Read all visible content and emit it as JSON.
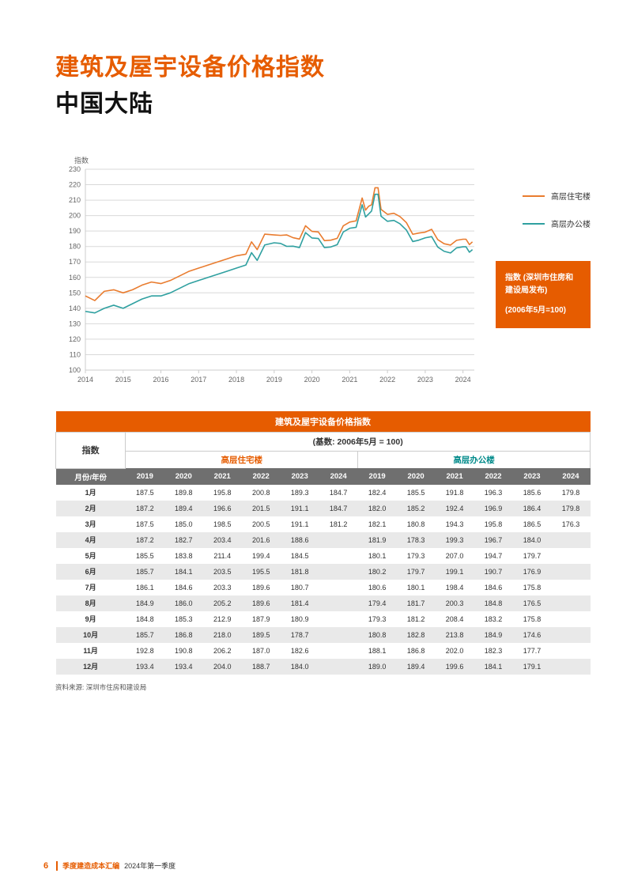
{
  "title_line1": "建筑及屋宇设备价格指数",
  "title_line2": "中国大陆",
  "chart": {
    "y_axis_title": "指数",
    "ylim": [
      100,
      230
    ],
    "ytick_step": 10,
    "yticks": [
      100,
      110,
      120,
      130,
      140,
      150,
      160,
      170,
      180,
      190,
      200,
      210,
      220,
      230
    ],
    "xlim": [
      2014,
      2024.3
    ],
    "xticks": [
      2014,
      2015,
      2016,
      2017,
      2018,
      2019,
      2020,
      2021,
      2022,
      2023,
      2024
    ],
    "grid_color": "#d9d9d9",
    "axis_color": "#cccccc",
    "background_color": "#ffffff",
    "tick_fontsize": 9,
    "tick_color": "#666666",
    "line_width": 1.6,
    "series": [
      {
        "name": "高层住宅楼",
        "color": "#e97c2f",
        "points": [
          [
            2014.0,
            148
          ],
          [
            2014.25,
            145
          ],
          [
            2014.5,
            151
          ],
          [
            2014.75,
            152
          ],
          [
            2015.0,
            150
          ],
          [
            2015.25,
            152
          ],
          [
            2015.5,
            155
          ],
          [
            2015.75,
            157
          ],
          [
            2016.0,
            156
          ],
          [
            2016.25,
            158
          ],
          [
            2016.5,
            161
          ],
          [
            2016.75,
            164
          ],
          [
            2017.0,
            166
          ],
          [
            2017.25,
            168
          ],
          [
            2017.5,
            170
          ],
          [
            2017.75,
            172
          ],
          [
            2018.0,
            174
          ],
          [
            2018.25,
            175
          ],
          [
            2018.4,
            183
          ],
          [
            2018.55,
            178
          ],
          [
            2018.75,
            188
          ],
          [
            2019.0,
            187.5
          ],
          [
            2019.17,
            187.2
          ],
          [
            2019.33,
            187.5
          ],
          [
            2019.5,
            185.7
          ],
          [
            2019.67,
            184.8
          ],
          [
            2019.83,
            193.4
          ],
          [
            2020.0,
            189.8
          ],
          [
            2020.17,
            189.4
          ],
          [
            2020.33,
            183.8
          ],
          [
            2020.5,
            184.1
          ],
          [
            2020.67,
            185.3
          ],
          [
            2020.83,
            193.4
          ],
          [
            2021.0,
            195.8
          ],
          [
            2021.17,
            196.6
          ],
          [
            2021.33,
            211.4
          ],
          [
            2021.42,
            203.5
          ],
          [
            2021.5,
            206
          ],
          [
            2021.58,
            207
          ],
          [
            2021.67,
            218.0
          ],
          [
            2021.75,
            218.0
          ],
          [
            2021.83,
            204.0
          ],
          [
            2022.0,
            200.8
          ],
          [
            2022.17,
            201.5
          ],
          [
            2022.33,
            199.4
          ],
          [
            2022.5,
            195.5
          ],
          [
            2022.67,
            187.9
          ],
          [
            2022.83,
            188.7
          ],
          [
            2023.0,
            189.3
          ],
          [
            2023.17,
            191.1
          ],
          [
            2023.33,
            184.5
          ],
          [
            2023.5,
            181.8
          ],
          [
            2023.67,
            180.9
          ],
          [
            2023.83,
            184.0
          ],
          [
            2024.0,
            184.7
          ],
          [
            2024.08,
            184.7
          ],
          [
            2024.17,
            181.2
          ],
          [
            2024.25,
            183
          ]
        ]
      },
      {
        "name": "高层办公楼",
        "color": "#2fa0a0",
        "points": [
          [
            2014.0,
            138
          ],
          [
            2014.25,
            137
          ],
          [
            2014.5,
            140
          ],
          [
            2014.75,
            142
          ],
          [
            2015.0,
            140
          ],
          [
            2015.25,
            143
          ],
          [
            2015.5,
            146
          ],
          [
            2015.75,
            148
          ],
          [
            2016.0,
            148
          ],
          [
            2016.25,
            150
          ],
          [
            2016.5,
            153
          ],
          [
            2016.75,
            156
          ],
          [
            2017.0,
            158
          ],
          [
            2017.25,
            160
          ],
          [
            2017.5,
            162
          ],
          [
            2017.75,
            164
          ],
          [
            2018.0,
            166
          ],
          [
            2018.25,
            168
          ],
          [
            2018.4,
            176
          ],
          [
            2018.55,
            171
          ],
          [
            2018.75,
            181
          ],
          [
            2019.0,
            182.4
          ],
          [
            2019.17,
            182.0
          ],
          [
            2019.33,
            180.1
          ],
          [
            2019.5,
            180.2
          ],
          [
            2019.67,
            179.3
          ],
          [
            2019.83,
            189.0
          ],
          [
            2020.0,
            185.5
          ],
          [
            2020.17,
            185.2
          ],
          [
            2020.33,
            179.3
          ],
          [
            2020.5,
            179.7
          ],
          [
            2020.67,
            181.2
          ],
          [
            2020.83,
            189.4
          ],
          [
            2021.0,
            191.8
          ],
          [
            2021.17,
            192.4
          ],
          [
            2021.33,
            207.0
          ],
          [
            2021.42,
            199.1
          ],
          [
            2021.5,
            201
          ],
          [
            2021.58,
            203
          ],
          [
            2021.67,
            213.8
          ],
          [
            2021.75,
            213.8
          ],
          [
            2021.83,
            199.6
          ],
          [
            2022.0,
            196.3
          ],
          [
            2022.17,
            196.9
          ],
          [
            2022.33,
            194.7
          ],
          [
            2022.5,
            190.7
          ],
          [
            2022.67,
            183.2
          ],
          [
            2022.83,
            184.1
          ],
          [
            2023.0,
            185.6
          ],
          [
            2023.17,
            186.4
          ],
          [
            2023.33,
            179.7
          ],
          [
            2023.5,
            176.9
          ],
          [
            2023.67,
            175.8
          ],
          [
            2023.83,
            179.1
          ],
          [
            2024.0,
            179.8
          ],
          [
            2024.08,
            179.8
          ],
          [
            2024.17,
            176.3
          ],
          [
            2024.25,
            178
          ]
        ]
      }
    ],
    "legend_items": [
      "高层住宅楼",
      "高层办公楼"
    ],
    "info_box_line1": "指数 (深圳市住房和建设局发布)",
    "info_box_line2": "(2006年5月=100)"
  },
  "table": {
    "title": "建筑及屋宇设备价格指数",
    "index_header": "指数",
    "base_header": "(基数: 2006年5月 = 100)",
    "series_headers": [
      "高层住宅楼",
      "高层办公楼"
    ],
    "month_year_header": "月份/年份",
    "years": [
      "2019",
      "2020",
      "2021",
      "2022",
      "2023",
      "2024"
    ],
    "months": [
      "1月",
      "2月",
      "3月",
      "4月",
      "5月",
      "6月",
      "7月",
      "8月",
      "9月",
      "10月",
      "11月",
      "12月"
    ],
    "residential": [
      [
        "187.5",
        "189.8",
        "195.8",
        "200.8",
        "189.3",
        "184.7"
      ],
      [
        "187.2",
        "189.4",
        "196.6",
        "201.5",
        "191.1",
        "184.7"
      ],
      [
        "187.5",
        "185.0",
        "198.5",
        "200.5",
        "191.1",
        "181.2"
      ],
      [
        "187.2",
        "182.7",
        "203.4",
        "201.6",
        "188.6",
        ""
      ],
      [
        "185.5",
        "183.8",
        "211.4",
        "199.4",
        "184.5",
        ""
      ],
      [
        "185.7",
        "184.1",
        "203.5",
        "195.5",
        "181.8",
        ""
      ],
      [
        "186.1",
        "184.6",
        "203.3",
        "189.6",
        "180.7",
        ""
      ],
      [
        "184.9",
        "186.0",
        "205.2",
        "189.6",
        "181.4",
        ""
      ],
      [
        "184.8",
        "185.3",
        "212.9",
        "187.9",
        "180.9",
        ""
      ],
      [
        "185.7",
        "186.8",
        "218.0",
        "189.5",
        "178.7",
        ""
      ],
      [
        "192.8",
        "190.8",
        "206.2",
        "187.0",
        "182.6",
        ""
      ],
      [
        "193.4",
        "193.4",
        "204.0",
        "188.7",
        "184.0",
        ""
      ]
    ],
    "office": [
      [
        "182.4",
        "185.5",
        "191.8",
        "196.3",
        "185.6",
        "179.8"
      ],
      [
        "182.0",
        "185.2",
        "192.4",
        "196.9",
        "186.4",
        "179.8"
      ],
      [
        "182.1",
        "180.8",
        "194.3",
        "195.8",
        "186.5",
        "176.3"
      ],
      [
        "181.9",
        "178.3",
        "199.3",
        "196.7",
        "184.0",
        ""
      ],
      [
        "180.1",
        "179.3",
        "207.0",
        "194.7",
        "179.7",
        ""
      ],
      [
        "180.2",
        "179.7",
        "199.1",
        "190.7",
        "176.9",
        ""
      ],
      [
        "180.6",
        "180.1",
        "198.4",
        "184.6",
        "175.8",
        ""
      ],
      [
        "179.4",
        "181.7",
        "200.3",
        "184.8",
        "176.5",
        ""
      ],
      [
        "179.3",
        "181.2",
        "208.4",
        "183.2",
        "175.8",
        ""
      ],
      [
        "180.8",
        "182.8",
        "213.8",
        "184.9",
        "174.6",
        ""
      ],
      [
        "188.1",
        "186.8",
        "202.0",
        "182.3",
        "177.7",
        ""
      ],
      [
        "189.0",
        "189.4",
        "199.6",
        "184.1",
        "179.1",
        ""
      ]
    ]
  },
  "source_label": "资料来源: 深圳市住房和建设局",
  "footer": {
    "page_number": "6",
    "publication": "季度建造成本汇编",
    "period": "2024年第一季度"
  }
}
